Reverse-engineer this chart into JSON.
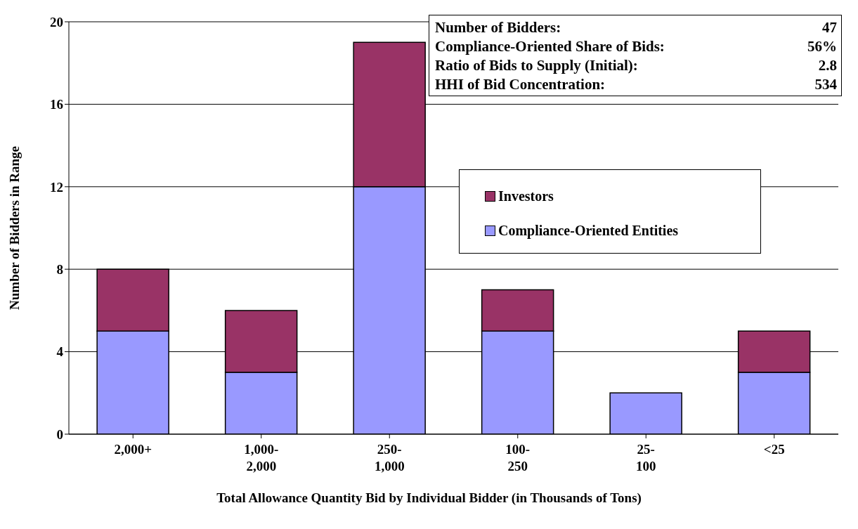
{
  "chart_data": {
    "type": "bar",
    "stacked": true,
    "xlabel": "Total Allowance Quantity Bid by Individual Bidder (in Thousands of Tons)",
    "ylabel": "Number of Bidders in Range",
    "categories": [
      "2,000+",
      "1,000-2,000",
      "250-1,000",
      "100-250",
      "25-100",
      "<25"
    ],
    "series": [
      {
        "name": "Compliance-Oriented Entities",
        "color": "#9999ff",
        "values": [
          5,
          3,
          12,
          5,
          2,
          3
        ]
      },
      {
        "name": "Investors",
        "color": "#993366",
        "values": [
          3,
          3,
          7,
          2,
          0,
          2
        ]
      }
    ],
    "ylim": [
      0,
      20
    ],
    "yticks": [
      0,
      4,
      8,
      12,
      16,
      20
    ],
    "grid": "y",
    "legend": "right",
    "annotations": [
      "Number of Bidders:",
      "47",
      "Compliance-Oriented Share of Bids:",
      "56%",
      "Ratio of Bids to Supply (Initial):",
      "2.8",
      "HHI of Bid Concentration:",
      "534"
    ]
  }
}
